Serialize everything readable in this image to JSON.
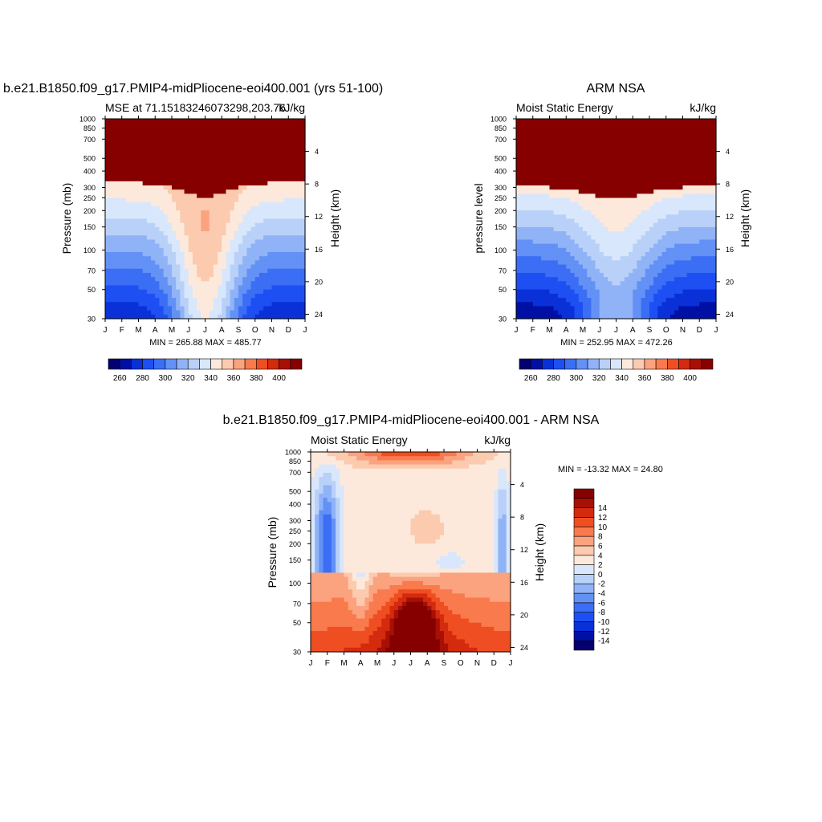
{
  "chart_data": [
    {
      "type": "heatmap",
      "title": "b.e21.B1850.f09_g17.PMIP4-midPliocene-eoi400.001 (yrs 51-100)",
      "subtitle_left": "MSE at 71.15183246073298,203.76",
      "subtitle_right": "kJ/kg",
      "ylabel": "Pressure (mb)",
      "ylabel_right": "Height (km)",
      "x_ticks": [
        "J",
        "F",
        "M",
        "A",
        "M",
        "J",
        "J",
        "A",
        "S",
        "O",
        "N",
        "D",
        "J"
      ],
      "y_ticks": [
        30,
        50,
        70,
        100,
        150,
        200,
        250,
        300,
        400,
        500,
        700,
        850,
        1000
      ],
      "height_ticks": [
        4,
        8,
        12,
        16,
        20,
        24
      ],
      "minmax_text": "MIN = 265.88  MAX = 485.77",
      "colorbar": {
        "levels": [
          260,
          270,
          280,
          290,
          300,
          310,
          320,
          330,
          340,
          350,
          360,
          370,
          380,
          390,
          400
        ],
        "labels": [
          260,
          280,
          300,
          320,
          340,
          360,
          380,
          400
        ]
      }
    },
    {
      "type": "heatmap",
      "title": "ARM NSA",
      "subtitle_left": "Moist Static Energy",
      "subtitle_right": "kJ/kg",
      "ylabel": "pressure level",
      "ylabel_right": "Height (km)",
      "x_ticks": [
        "J",
        "F",
        "M",
        "A",
        "M",
        "J",
        "J",
        "A",
        "S",
        "O",
        "N",
        "D",
        "J"
      ],
      "y_ticks": [
        30,
        50,
        70,
        100,
        150,
        200,
        250,
        300,
        400,
        500,
        700,
        850,
        1000
      ],
      "height_ticks": [
        4,
        8,
        12,
        16,
        20,
        24
      ],
      "minmax_text": "MIN = 252.95  MAX = 472.26",
      "colorbar": {
        "levels": [
          260,
          270,
          280,
          290,
          300,
          310,
          320,
          330,
          340,
          350,
          360,
          370,
          380,
          390,
          400
        ],
        "labels": [
          260,
          280,
          300,
          320,
          340,
          360,
          380,
          400
        ]
      }
    },
    {
      "type": "heatmap",
      "title": "b.e21.B1850.f09_g17.PMIP4-midPliocene-eoi400.001 - ARM NSA",
      "subtitle_left": "Moist Static Energy",
      "subtitle_right": "kJ/kg",
      "ylabel": "Pressure (mb)",
      "ylabel_right": "Height (km)",
      "x_ticks": [
        "J",
        "F",
        "M",
        "A",
        "M",
        "J",
        "J",
        "A",
        "S",
        "O",
        "N",
        "D",
        "J"
      ],
      "y_ticks": [
        30,
        50,
        70,
        100,
        150,
        200,
        250,
        300,
        400,
        500,
        700,
        850,
        1000
      ],
      "height_ticks": [
        4,
        8,
        12,
        16,
        20,
        24
      ],
      "minmax_text": "MIN = -13.32  MAX =  24.80",
      "colorbar": {
        "levels": [
          -14,
          -12,
          -10,
          -8,
          -6,
          -4,
          -2,
          0,
          2,
          4,
          6,
          8,
          10,
          12,
          14
        ],
        "labels": [
          14,
          12,
          10,
          8,
          6,
          4,
          2,
          0,
          -2,
          -4,
          -6,
          -8,
          -10,
          -12,
          -14
        ]
      }
    }
  ],
  "colors": {
    "mse": [
      "#04006f",
      "#0010a4",
      "#0a30d8",
      "#1d4ff2",
      "#3b6ef5",
      "#6391f5",
      "#90b3f7",
      "#b9d1f8",
      "#d8e7fb",
      "#fde9db",
      "#fccaae",
      "#fba27f",
      "#f97a4d",
      "#ef4e22",
      "#d42a0e",
      "#a80f05",
      "#860000"
    ],
    "diff": [
      "#04006f",
      "#0010a4",
      "#0a30d8",
      "#1d4ff2",
      "#3b6ef5",
      "#6391f5",
      "#90b3f7",
      "#b9d1f8",
      "#d8e7fb",
      "#fde9db",
      "#fccaae",
      "#fba27f",
      "#f97a4d",
      "#ef4e22",
      "#d42a0e",
      "#a80f05",
      "#860000"
    ]
  }
}
